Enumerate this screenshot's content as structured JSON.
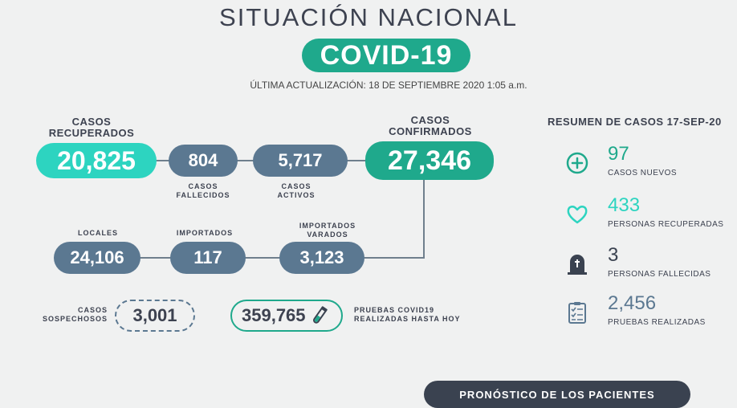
{
  "header": {
    "title": "SITUACIÓN NACIONAL",
    "badge": "COVID-19",
    "updated": "ÚLTIMA ACTUALIZACIÓN: 18 DE SEPTIEMBRE 2020 1:05 a.m."
  },
  "flow": {
    "recuperados": {
      "label": "CASOS\nRECUPERADOS",
      "value": "20,825"
    },
    "fallecidos": {
      "label": "CASOS\nFALLECIDOS",
      "value": "804"
    },
    "activos": {
      "label": "CASOS\nACTIVOS",
      "value": "5,717"
    },
    "confirmados": {
      "label": "CASOS\nCONFIRMADOS",
      "value": "27,346"
    },
    "locales": {
      "label": "LOCALES",
      "value": "24,106"
    },
    "importados": {
      "label": "IMPORTADOS",
      "value": "117"
    },
    "varados": {
      "label": "IMPORTADOS\nVARADOS",
      "value": "3,123"
    },
    "sospechosos": {
      "label": "CASOS\nSOSPECHOSOS",
      "value": "3,001"
    },
    "pruebas": {
      "label": "PRUEBAS COVID19\nREALIZADAS HASTA HOY",
      "value": "359,765"
    }
  },
  "summary": {
    "title": "RESUMEN DE CASOS 17-SEP-20",
    "items": [
      {
        "icon": "plus-circle-icon",
        "value": "97",
        "label": "CASOS NUEVOS",
        "color": "#1fa98c"
      },
      {
        "icon": "heart-icon",
        "value": "433",
        "label": "PERSONAS RECUPERADAS",
        "color": "#2dd4c0"
      },
      {
        "icon": "tombstone-icon",
        "value": "3",
        "label": "PERSONAS FALLECIDAS",
        "color": "#3a4250"
      },
      {
        "icon": "clipboard-checklist-icon",
        "value": "2,456",
        "label": "PRUEBAS REALIZADAS",
        "color": "#5b7891"
      }
    ]
  },
  "footer": {
    "button": "PRONÓSTICO DE LOS PACIENTES"
  }
}
